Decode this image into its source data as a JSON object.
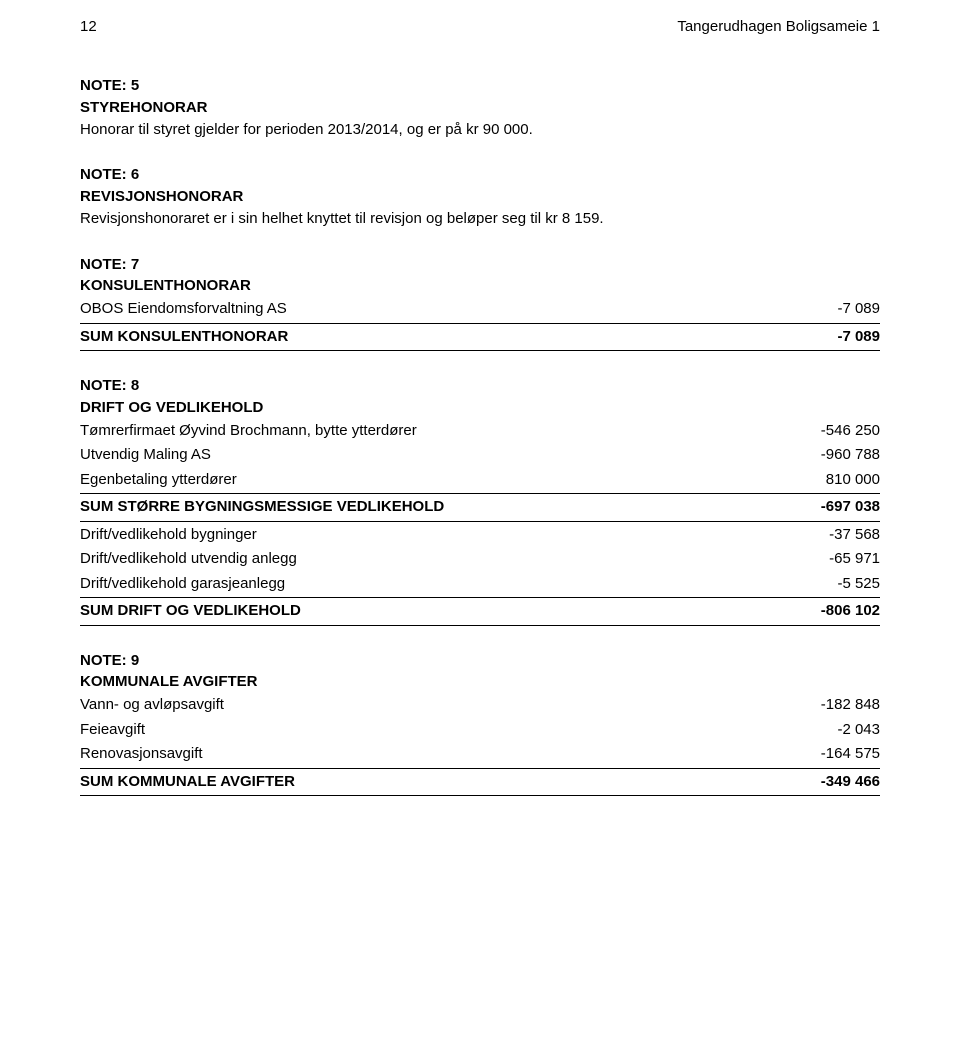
{
  "header": {
    "page_number": "12",
    "doc_title": "Tangerudhagen Boligsameie 1"
  },
  "note5": {
    "title": "NOTE: 5",
    "subtitle": "STYREHONORAR",
    "text": "Honorar til styret gjelder for perioden 2013/2014, og er på kr 90 000."
  },
  "note6": {
    "title": "NOTE: 6",
    "subtitle": "REVISJONSHONORAR",
    "text": "Revisjonshonoraret er i sin helhet knyttet til revisjon og beløper seg til kr 8 159."
  },
  "note7": {
    "title": "NOTE: 7",
    "subtitle": "KONSULENTHONORAR",
    "rows": [
      {
        "label": "OBOS Eiendomsforvaltning AS",
        "value": "-7 089"
      }
    ],
    "sum": {
      "label": "SUM KONSULENTHONORAR",
      "value": "-7 089"
    }
  },
  "note8": {
    "title": "NOTE: 8",
    "subtitle": "DRIFT OG VEDLIKEHOLD",
    "rows1": [
      {
        "label": "Tømrerfirmaet Øyvind Brochmann, bytte ytterdører",
        "value": "-546 250"
      },
      {
        "label": "Utvendig Maling AS",
        "value": "-960 788"
      },
      {
        "label": "Egenbetaling ytterdører",
        "value": "810 000"
      }
    ],
    "sum1": {
      "label": "SUM STØRRE BYGNINGSMESSIGE VEDLIKEHOLD",
      "value": "-697 038"
    },
    "rows2": [
      {
        "label": "Drift/vedlikehold bygninger",
        "value": "-37 568"
      },
      {
        "label": "Drift/vedlikehold utvendig anlegg",
        "value": "-65 971"
      },
      {
        "label": "Drift/vedlikehold garasjeanlegg",
        "value": "-5 525"
      }
    ],
    "sum2": {
      "label": "SUM DRIFT OG VEDLIKEHOLD",
      "value": "-806 102"
    }
  },
  "note9": {
    "title": "NOTE: 9",
    "subtitle": "KOMMUNALE AVGIFTER",
    "rows": [
      {
        "label": "Vann- og avløpsavgift",
        "value": "-182 848"
      },
      {
        "label": "Feieavgift",
        "value": "-2 043"
      },
      {
        "label": "Renovasjonsavgift",
        "value": "-164 575"
      }
    ],
    "sum": {
      "label": "SUM KOMMUNALE AVGIFTER",
      "value": "-349 466"
    }
  }
}
